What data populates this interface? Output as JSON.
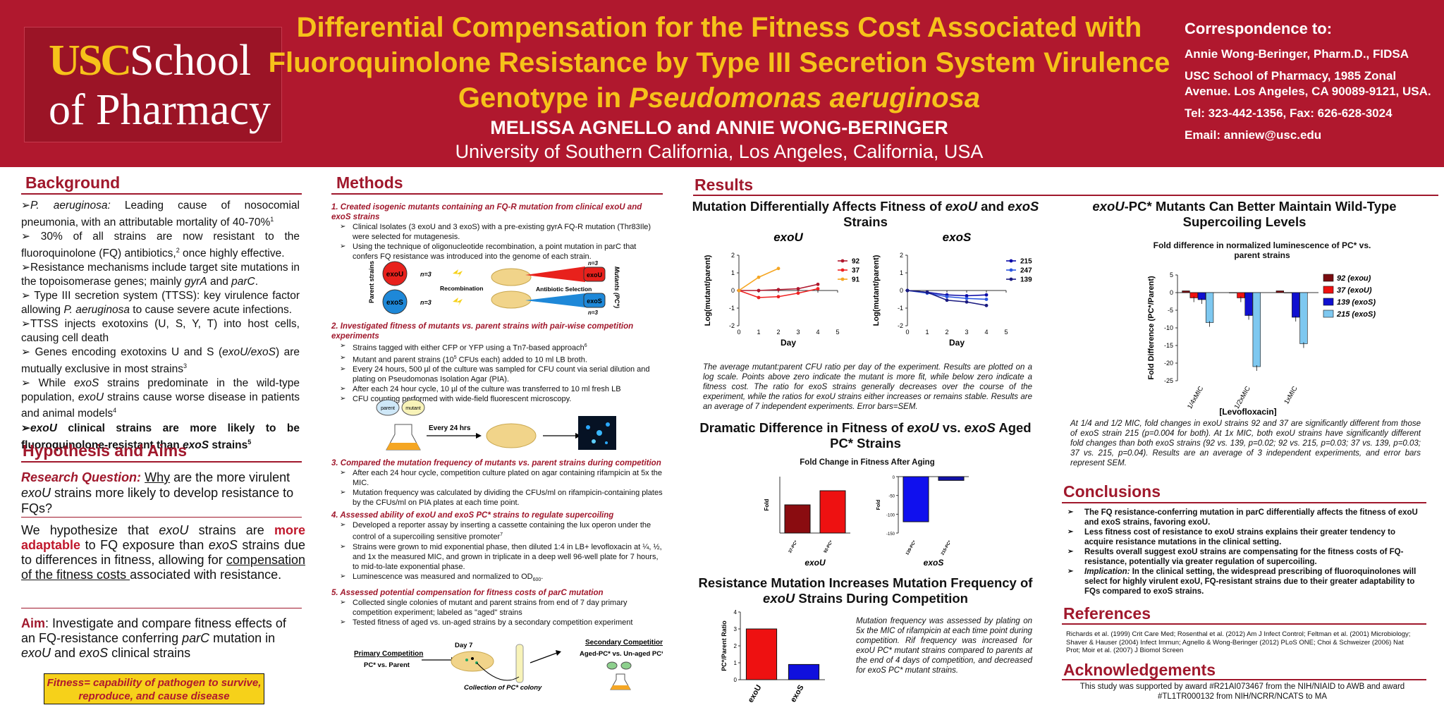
{
  "header": {
    "logo_usc": "USC",
    "logo_school": "School",
    "logo_line2": "of Pharmacy",
    "title_l1": "Differential Compensation for the Fitness Cost Associated with",
    "title_l2": "Fluoroquinolone Resistance by Type III Secretion System Virulence",
    "title_l3a": "Genotype in ",
    "title_l3b": "Pseudomonas aeruginosa",
    "authors": "MELISSA  AGNELLO and ANNIE WONG-BERINGER",
    "affiliation": "University of Southern California, Los Angeles, California, USA",
    "corr_title": "Correspondence to:",
    "corr_name": "Annie Wong-Beringer, Pharm.D., FIDSA",
    "corr_addr": "USC School of Pharmacy, 1985 Zonal Avenue. Los Angeles, CA 90089-9121, USA.",
    "corr_tel": "Tel: 323-442-1356, Fax: 626-628-3024",
    "corr_email": "Email: anniew@usc.edu"
  },
  "background": {
    "heading": "Background",
    "b1a": "P. aeruginosa:",
    "b1b": " Leading cause of nosocomial pneumonia, with an attributable mortality of 40-70%",
    "b2": "30% of all strains are now resistant to the fluoroquinolone (FQ) antibiotics,",
    "b2b": " once highly effective.",
    "b3a": "Resistance mechanisms include target site mutations in the topoisomerase genes; mainly ",
    "b3b": "gyrA",
    "b3c": " and ",
    "b3d": "parC",
    "b3e": ".",
    "b4a": "Type III secretion system (TTSS): key virulence factor allowing ",
    "b4b": "P. aeruginosa",
    "b4c": " to cause severe acute infections.",
    "b5": "TTSS injects exotoxins (U, S, Y, T) into host cells, causing cell death",
    "b6a": "Genes encoding exotoxins U and S (",
    "b6b": "exoU/exoS",
    "b6c": ") are mutually exclusive in most strains",
    "b7a": "While ",
    "b7b": "exoS",
    "b7c": " strains predominate in the wild-type population, ",
    "b7d": "exoU",
    "b7e": " strains cause worse disease in patients and animal models",
    "b8a": "exoU",
    "b8b": " clinical strains are more likely to be fluoroquinolone-resistant than ",
    "b8c": "exoS",
    "b8d": " strains"
  },
  "hypothesis": {
    "heading": "Hypothesis and Aims",
    "rq_label": "Research Question:",
    "rq_why": "Why",
    "rq_rest": " are the more virulent ",
    "rq_exou": "exoU",
    "rq_end": " strains more likely to develop resistance to FQs?",
    "h1": "We hypothesize that ",
    "h2": "exoU",
    "h3": " strains are ",
    "h4": "more adaptable",
    "h5": " to FQ exposure than ",
    "h6": "exoS",
    "h7": " strains due to differences in fitness, allowing for ",
    "h8": "compensation of the fitness costs ",
    "h9": "associated with resistance.",
    "aim_label": "Aim",
    "aim_text": ": Investigate and compare fitness effects of an FQ-resistance conferring ",
    "aim_parc": "parC",
    "aim_text2": " mutation in ",
    "aim_exou": "exoU",
    "aim_and": " and ",
    "aim_exos": "exoS",
    "aim_end": " clinical strains",
    "fit_label": "Fitness=",
    "fit_text": " capability of pathogen to survive, reproduce, and cause disease"
  },
  "methods": {
    "heading": "Methods",
    "m1": "1.  Created isogenic mutants containing an FQ-R mutation from clinical exoU and exoS strains",
    "m1a": "Clinical Isolates (3 exoU and 3 exoS) with a pre-existing gyrA FQ-R mutation (Thr83Ile) were selected for mutagenesis.",
    "m1b": "Using the technique of oligonucleotide recombination, a point mutation in parC that confers FQ resistance was introduced into the genome of each strain.",
    "d_exou": "exoU",
    "d_exos": "exoS",
    "d_n": "n=3",
    "d_parent": "Parent strains (clinical)",
    "d_recomb": "Recombination",
    "d_anti": "Antibiotic Selection",
    "d_mut": "Mutants (PC*)",
    "m2": "2.  Investigated fitness of mutants vs. parent strains with pair-wise competition experiments",
    "m2a": "Strains tagged with either CFP or YFP using a Tn7-based approach",
    "m2b": "Mutant and parent strains (10",
    "m2b2": " CFUs each) added to 10 ml LB broth.",
    "m2c": "Every 24 hours, 500 µl of the culture was sampled for CFU count via serial dilution and plating on Pseudomonas Isolation Agar (PIA).",
    "m2d": "After each 24 hour cycle, 10 µl of the culture was transferred to 10 ml fresh LB",
    "m2e": "CFU counting performed with wide-field fluorescent microscopy.",
    "d_parent2": "parent",
    "d_mutant2": "mutant",
    "d_every": "Every 24 hrs",
    "m3": "3.  Compared the mutation frequency of mutants vs. parent strains during competition",
    "m3a": "After each 24 hour cycle, competition culture plated on agar containing rifampicin at 5x the MIC.",
    "m3b": "Mutation frequency was calculated by dividing the CFUs/ml on rifampicin-containing plates by the CFUs/ml on PIA plates at each time point.",
    "m4": "4.  Assessed ability of exoU and exoS PC* strains to regulate supercoiling",
    "m4a": "Developed a reporter assay by inserting a cassette containing the lux operon under the control of a supercoiling sensitive promoter",
    "m4b": "Strains were grown to mid exponential phase, then diluted 1:4 in LB+ levofloxacin at ¼, ½, and 1x the measured MIC, and grown in triplicate in a deep well 96-well plate for 7 hours, to mid-to-late exponential phase.",
    "m4c": "Luminescence was measured and normalized to OD",
    "m5": "5.  Assessed potential compensation for fitness costs of parC mutation",
    "m5a": "Collected single colonies of mutant and parent strains from end of 7 day primary competition experiment; labeled as \"aged\" strains",
    "m5b": "Tested fitness of aged vs. un-aged strains by a secondary competition experiment",
    "d_prim": "Primary Competition",
    "d_prim2": "PC* vs. Parent",
    "d_day7": "Day 7",
    "d_coll": "Collection of PC* colony",
    "d_sec": "Secondary Competition",
    "d_sec2": "Aged-PC* vs. Un-aged PC*"
  },
  "results": {
    "heading": "Results",
    "fig1_title": "Mutation Differentially Affects Fitness of exoU and exoS Strains",
    "fig1_cap": "The average mutant:parent CFU ratio per day of the experiment. Results are plotted on a log scale. Points above zero indicate the mutant is more fit, while below zero indicate a fitness cost. The ratio for exoS strains generally decreases over the course of the experiment, while the ratios for exoU strains either increases or remains stable. Results are an average of 7 independent experiments. Error bars=SEM.",
    "fig2_title": "Dramatic Difference in Fitness of exoU vs. exoS Aged PC* Strains",
    "fig3_title": "Resistance Mutation Increases Mutation Frequency of exoU Strains During Competition",
    "fig3_cap": "Mutation frequency was assessed by plating on 5x the MIC of rifampicin at each time point during competition. Rif frequency was increased for exoU PC* mutant strains compared to parents at the end of 4 days of competition, and decreased for exoS PC* mutant strains.",
    "fig4_title": "exoU-PC* Mutants Can Better Maintain Wild-Type Supercoiling Levels",
    "fig4_cap": "At 1/4 and 1/2 MIC, fold changes in exoU strains 92 and 37 are significantly different from those of exoS strain 215 (p=0.004 for both). At 1x MIC, both exoU strains have significantly different fold changes than both exoS strains (92 vs. 139, p=0.02; 92 vs. 215, p=0.03; 37 vs. 139, p=0.03; 37 vs. 215, p=0.04). Results are an average of 3 independent experiments, and error bars represent SEM."
  },
  "conclusions": {
    "heading": "Conclusions",
    "c1": "The FQ resistance-conferring mutation in parC differentially affects the fitness of exoU and exoS strains, favoring exoU.",
    "c2": "Less fitness cost of resistance to exoU strains explains their greater tendency to acquire resistance mutations in the clinical setting.",
    "c3": "Results overall suggest exoU strains are compensating for the fitness costs of FQ-resistance, potentially via greater regulation of supercoiling.",
    "c4a": "Implication:",
    "c4b": " In the clinical setting, the widespread prescribing of fluoroquinolones will select for highly virulent exoU, FQ-resistant strains due to their greater adaptability to FQs compared to exoS strains."
  },
  "references": {
    "heading": "References",
    "text": "Richards et al. (1999) Crit Care Med; Rosenthal et al. (2012) Am J Infect Control; Feltman et al. (2001) Microbiology; Shaver & Hauser (2004) Infect Immun; Agnello & Wong-Beringer (2012) PLoS ONE; Choi & Schweizer (2006) Nat Prot; Moir et al. (2007) J Biomol Screen"
  },
  "acknowledgements": {
    "heading": "Acknowledgements",
    "text": "This study was supported by award #R21AI073467 from the NIH/NIAID to AWB and award #TL1TR000132 from NIH/NCRR/NCATS to MA"
  },
  "chart_data": [
    {
      "type": "line",
      "title": "exoU",
      "xlabel": "Day",
      "ylabel": "Log(mutant/parent)",
      "x": [
        0,
        1,
        2,
        3,
        4
      ],
      "xlim": [
        0,
        5
      ],
      "ylim": [
        -2,
        2
      ],
      "series": [
        {
          "name": "92",
          "color": "#b0182e",
          "values": [
            0,
            0,
            0.05,
            0.1,
            0.35
          ]
        },
        {
          "name": "37",
          "color": "#ee2222",
          "values": [
            0,
            -0.4,
            -0.35,
            -0.15,
            0.1
          ]
        },
        {
          "name": "91",
          "color": "#f5a623",
          "values": [
            0,
            0.75,
            1.25,
            null,
            null
          ]
        }
      ]
    },
    {
      "type": "line",
      "title": "exoS",
      "xlabel": "Day",
      "ylabel": "Log(mutant/parent)",
      "x": [
        0,
        1,
        2,
        3,
        4
      ],
      "xlim": [
        0,
        5
      ],
      "ylim": [
        -2,
        2
      ],
      "series": [
        {
          "name": "215",
          "color": "#0a0aa8",
          "values": [
            0,
            -0.1,
            -0.25,
            -0.3,
            -0.25
          ]
        },
        {
          "name": "247",
          "color": "#2a55e0",
          "values": [
            0,
            -0.15,
            -0.35,
            -0.45,
            -0.5
          ]
        },
        {
          "name": "139",
          "color": "#1a1a80",
          "values": [
            0,
            -0.1,
            -0.55,
            -0.65,
            -0.85
          ]
        }
      ]
    },
    {
      "type": "bar",
      "title": "Fold Change in Fitness After Aging",
      "panel": "exoU",
      "ylabel": "Fold",
      "categories": [
        "37-PC*",
        "92-PC*"
      ],
      "values": [
        4,
        6
      ],
      "ylim": [
        0,
        8
      ],
      "colors": [
        "#8a0c10",
        "#ee1111"
      ]
    },
    {
      "type": "bar",
      "panel": "exoS",
      "ylabel": "Fold",
      "categories": [
        "139-PC*",
        "215-PC*"
      ],
      "values": [
        -120,
        -10
      ],
      "ylim": [
        -150,
        0
      ],
      "colors": [
        "#1010ee",
        "#1010aa"
      ]
    },
    {
      "type": "bar",
      "ylabel": "PC*/Parent Ratio",
      "categories": [
        "exoU",
        "exoS"
      ],
      "values": [
        3,
        0.9
      ],
      "ylim": [
        0,
        4
      ],
      "colors": [
        "#ee1111",
        "#1010dd"
      ]
    },
    {
      "type": "bar",
      "title": "Fold difference in normalized luminescence of PC* vs. parent strains",
      "xlabel": "[Levofloxacin]",
      "ylabel": "Fold Difference (PC*/Parent)",
      "categories": [
        "1/4xMIC",
        "1/2xMIC",
        "1xMIC"
      ],
      "ylim": [
        -25,
        5
      ],
      "series": [
        {
          "name": "92 (exou)",
          "color": "#7a0c10",
          "values": [
            0.5,
            0,
            0.5
          ]
        },
        {
          "name": "37 (exoU)",
          "color": "#ee1111",
          "values": [
            -1.5,
            -1.5,
            0
          ]
        },
        {
          "name": "139 (exoS)",
          "color": "#1010d0",
          "values": [
            -2,
            -6.5,
            -7
          ]
        },
        {
          "name": "215 (exoS)",
          "color": "#7ec8f0",
          "values": [
            -8.5,
            -21,
            -14.5
          ]
        }
      ]
    }
  ]
}
